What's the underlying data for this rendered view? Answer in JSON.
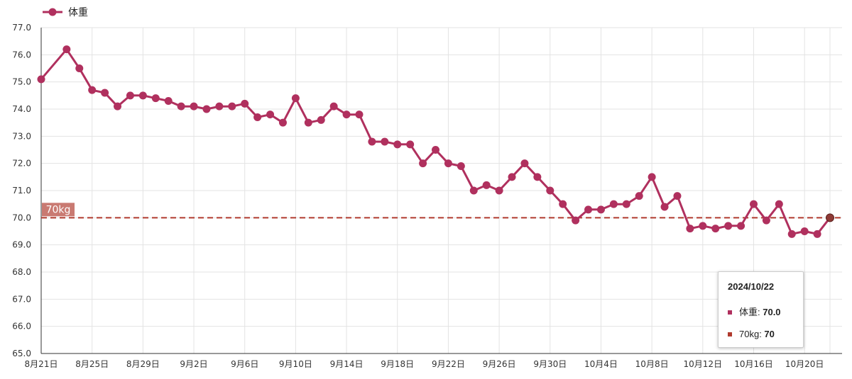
{
  "chart_data": {
    "type": "line",
    "title": "",
    "xlabel": "",
    "ylabel": "",
    "ylim": [
      65,
      77
    ],
    "y_ticks": [
      "65.0",
      "66.0",
      "67.0",
      "68.0",
      "69.0",
      "70.0",
      "71.0",
      "72.0",
      "73.0",
      "74.0",
      "75.0",
      "76.0",
      "77.0"
    ],
    "x_ticks": [
      "8月21日",
      "8月25日",
      "8月29日",
      "9月2日",
      "9月6日",
      "9月10日",
      "9月14日",
      "9月18日",
      "9月22日",
      "9月26日",
      "9月30日",
      "10月4日",
      "10月8日",
      "10月12日",
      "10月16日",
      "10月20日"
    ],
    "grid": true,
    "legend_position": "top-left",
    "series": [
      {
        "name": "体重",
        "color": "#b0305e",
        "x": [
          "2024-08-21",
          "2024-08-23",
          "2024-08-24",
          "2024-08-25",
          "2024-08-26",
          "2024-08-27",
          "2024-08-28",
          "2024-08-29",
          "2024-08-30",
          "2024-08-31",
          "2024-09-01",
          "2024-09-02",
          "2024-09-03",
          "2024-09-04",
          "2024-09-05",
          "2024-09-06",
          "2024-09-07",
          "2024-09-08",
          "2024-09-09",
          "2024-09-10",
          "2024-09-11",
          "2024-09-12",
          "2024-09-13",
          "2024-09-14",
          "2024-09-15",
          "2024-09-16",
          "2024-09-17",
          "2024-09-18",
          "2024-09-19",
          "2024-09-20",
          "2024-09-21",
          "2024-09-22",
          "2024-09-23",
          "2024-09-24",
          "2024-09-25",
          "2024-09-26",
          "2024-09-27",
          "2024-09-28",
          "2024-09-29",
          "2024-09-30",
          "2024-10-01",
          "2024-10-02",
          "2024-10-03",
          "2024-10-04",
          "2024-10-05",
          "2024-10-06",
          "2024-10-07",
          "2024-10-08",
          "2024-10-09",
          "2024-10-10",
          "2024-10-11",
          "2024-10-12",
          "2024-10-13",
          "2024-10-14",
          "2024-10-15",
          "2024-10-16",
          "2024-10-17",
          "2024-10-18",
          "2024-10-19",
          "2024-10-20",
          "2024-10-21",
          "2024-10-22"
        ],
        "values": [
          75.1,
          76.2,
          75.5,
          74.7,
          74.6,
          74.1,
          74.5,
          74.5,
          74.4,
          74.3,
          74.1,
          74.1,
          74.0,
          74.1,
          74.1,
          74.2,
          73.7,
          73.8,
          73.5,
          74.4,
          73.5,
          73.6,
          74.1,
          73.8,
          73.8,
          72.8,
          72.8,
          72.7,
          72.7,
          72.0,
          72.5,
          72.0,
          71.9,
          71.0,
          71.2,
          71.0,
          71.5,
          72.0,
          71.5,
          71.0,
          70.5,
          69.9,
          70.3,
          70.3,
          70.5,
          70.5,
          70.8,
          71.5,
          70.4,
          70.8,
          69.6,
          69.7,
          69.6,
          69.7,
          69.7,
          70.5,
          69.9,
          70.5,
          69.4,
          69.5,
          69.4,
          70.0
        ]
      }
    ],
    "reference_line": {
      "name": "70kg",
      "value": 70,
      "color": "#b03a2e",
      "label": "70kg"
    },
    "tooltip": {
      "date": "2024/10/22",
      "rows": [
        {
          "label": "体重: ",
          "value": "70.0",
          "color": "#b0305e"
        },
        {
          "label": "70kg: ",
          "value": "70",
          "color": "#b03a2e"
        }
      ]
    }
  }
}
